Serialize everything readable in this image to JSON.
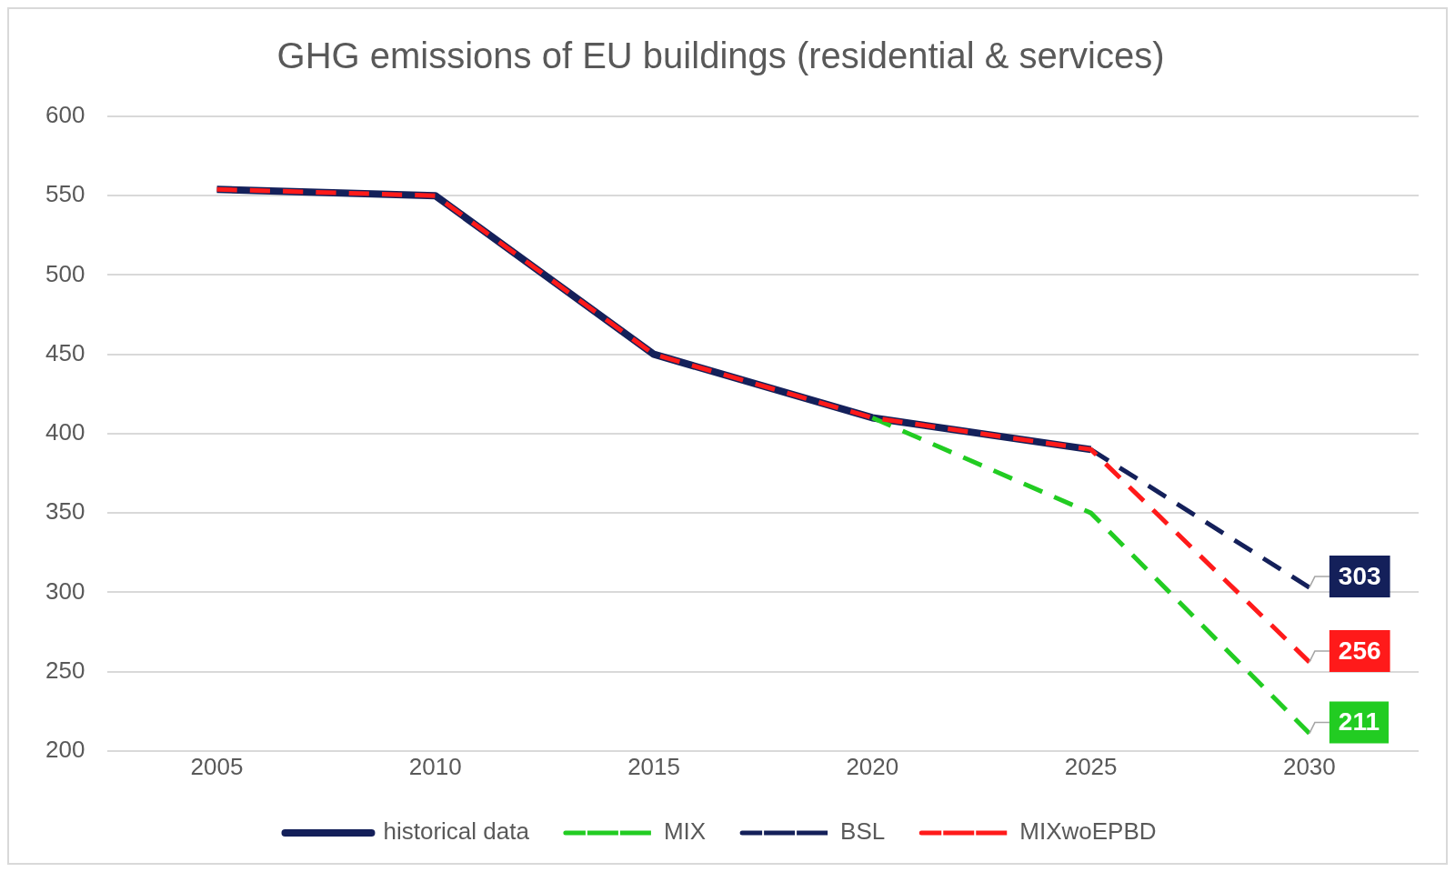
{
  "chart_data": {
    "type": "line",
    "title": "GHG emissions of EU buildings (residential & services)",
    "x": [
      2005,
      2010,
      2015,
      2020,
      2025,
      2030
    ],
    "xlim": [
      2002.5,
      2032.5
    ],
    "xticks": [
      2005,
      2010,
      2015,
      2020,
      2025,
      2030
    ],
    "ylim": [
      200,
      600
    ],
    "yticks": [
      200,
      250,
      300,
      350,
      400,
      450,
      500,
      550,
      600
    ],
    "grid": "y",
    "legend": "bottom",
    "marker": "none",
    "series": [
      {
        "name": "historical data",
        "color": "#14205a",
        "line_style": "solid",
        "values": [
          554,
          550,
          450,
          410,
          390,
          null
        ]
      },
      {
        "name": "MIX",
        "color": "#22cc22",
        "line_style": "dashed",
        "values": [
          null,
          null,
          null,
          410,
          350,
          211
        ],
        "value_labels": [
          null,
          null,
          null,
          null,
          null,
          "211"
        ]
      },
      {
        "name": "BSL",
        "color": "#14205a",
        "line_style": "dashed",
        "values": [
          null,
          null,
          null,
          null,
          390,
          303
        ],
        "value_labels": [
          null,
          null,
          null,
          null,
          null,
          "303"
        ]
      },
      {
        "name": "MIXwoEPBD",
        "color": "#ff1a1a",
        "line_style": "dashed",
        "values": [
          554,
          550,
          450,
          410,
          390,
          256
        ],
        "value_labels": [
          null,
          null,
          null,
          null,
          null,
          "256"
        ]
      }
    ]
  }
}
